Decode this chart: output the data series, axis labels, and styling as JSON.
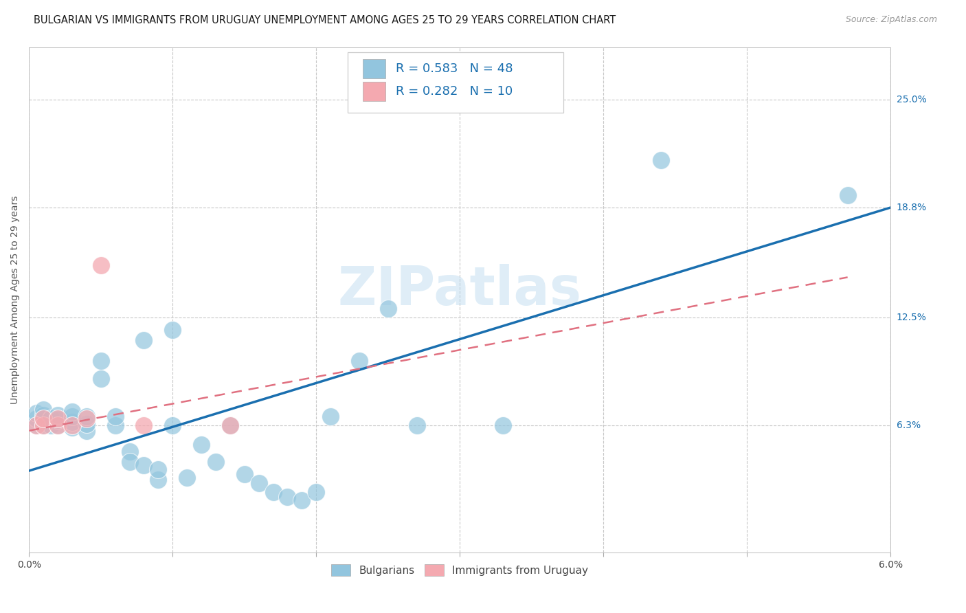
{
  "title": "BULGARIAN VS IMMIGRANTS FROM URUGUAY UNEMPLOYMENT AMONG AGES 25 TO 29 YEARS CORRELATION CHART",
  "source": "Source: ZipAtlas.com",
  "ylabel": "Unemployment Among Ages 25 to 29 years",
  "xlim": [
    0.0,
    0.06
  ],
  "ylim": [
    -0.01,
    0.28
  ],
  "ytick_positions": [
    0.063,
    0.125,
    0.188,
    0.25
  ],
  "ytick_labels": [
    "6.3%",
    "12.5%",
    "18.8%",
    "25.0%"
  ],
  "blue_color": "#92c5de",
  "pink_color": "#f4a9b0",
  "blue_line_color": "#1a6faf",
  "pink_line_color": "#e07080",
  "legend_R_blue": "0.583",
  "legend_N_blue": "48",
  "legend_R_pink": "0.282",
  "legend_N_pink": "10",
  "background_color": "#ffffff",
  "grid_color": "#c8c8c8",
  "blue_dots": [
    [
      0.0005,
      0.063
    ],
    [
      0.0005,
      0.067
    ],
    [
      0.0005,
      0.07
    ],
    [
      0.001,
      0.063
    ],
    [
      0.001,
      0.066
    ],
    [
      0.001,
      0.069
    ],
    [
      0.001,
      0.072
    ],
    [
      0.0015,
      0.063
    ],
    [
      0.0015,
      0.067
    ],
    [
      0.002,
      0.063
    ],
    [
      0.002,
      0.066
    ],
    [
      0.002,
      0.069
    ],
    [
      0.003,
      0.062
    ],
    [
      0.003,
      0.065
    ],
    [
      0.003,
      0.068
    ],
    [
      0.003,
      0.071
    ],
    [
      0.004,
      0.06
    ],
    [
      0.004,
      0.064
    ],
    [
      0.004,
      0.068
    ],
    [
      0.005,
      0.09
    ],
    [
      0.005,
      0.1
    ],
    [
      0.006,
      0.063
    ],
    [
      0.006,
      0.068
    ],
    [
      0.007,
      0.048
    ],
    [
      0.007,
      0.042
    ],
    [
      0.008,
      0.112
    ],
    [
      0.008,
      0.04
    ],
    [
      0.009,
      0.032
    ],
    [
      0.009,
      0.038
    ],
    [
      0.01,
      0.118
    ],
    [
      0.01,
      0.063
    ],
    [
      0.011,
      0.033
    ],
    [
      0.012,
      0.052
    ],
    [
      0.013,
      0.042
    ],
    [
      0.014,
      0.063
    ],
    [
      0.015,
      0.035
    ],
    [
      0.016,
      0.03
    ],
    [
      0.017,
      0.025
    ],
    [
      0.018,
      0.022
    ],
    [
      0.019,
      0.02
    ],
    [
      0.02,
      0.025
    ],
    [
      0.021,
      0.068
    ],
    [
      0.023,
      0.1
    ],
    [
      0.025,
      0.13
    ],
    [
      0.027,
      0.063
    ],
    [
      0.033,
      0.063
    ],
    [
      0.044,
      0.215
    ],
    [
      0.057,
      0.195
    ]
  ],
  "pink_dots": [
    [
      0.0005,
      0.063
    ],
    [
      0.001,
      0.063
    ],
    [
      0.001,
      0.067
    ],
    [
      0.002,
      0.063
    ],
    [
      0.002,
      0.067
    ],
    [
      0.003,
      0.063
    ],
    [
      0.004,
      0.067
    ],
    [
      0.005,
      0.155
    ],
    [
      0.008,
      0.063
    ],
    [
      0.014,
      0.063
    ]
  ],
  "blue_line_x": [
    0.0,
    0.06
  ],
  "blue_line_y": [
    0.037,
    0.188
  ],
  "pink_line_x": [
    0.0,
    0.057
  ],
  "pink_line_y": [
    0.06,
    0.148
  ],
  "watermark": "ZIPatlas",
  "title_fontsize": 10.5,
  "axis_label_fontsize": 10,
  "tick_fontsize": 10,
  "source_fontsize": 9
}
